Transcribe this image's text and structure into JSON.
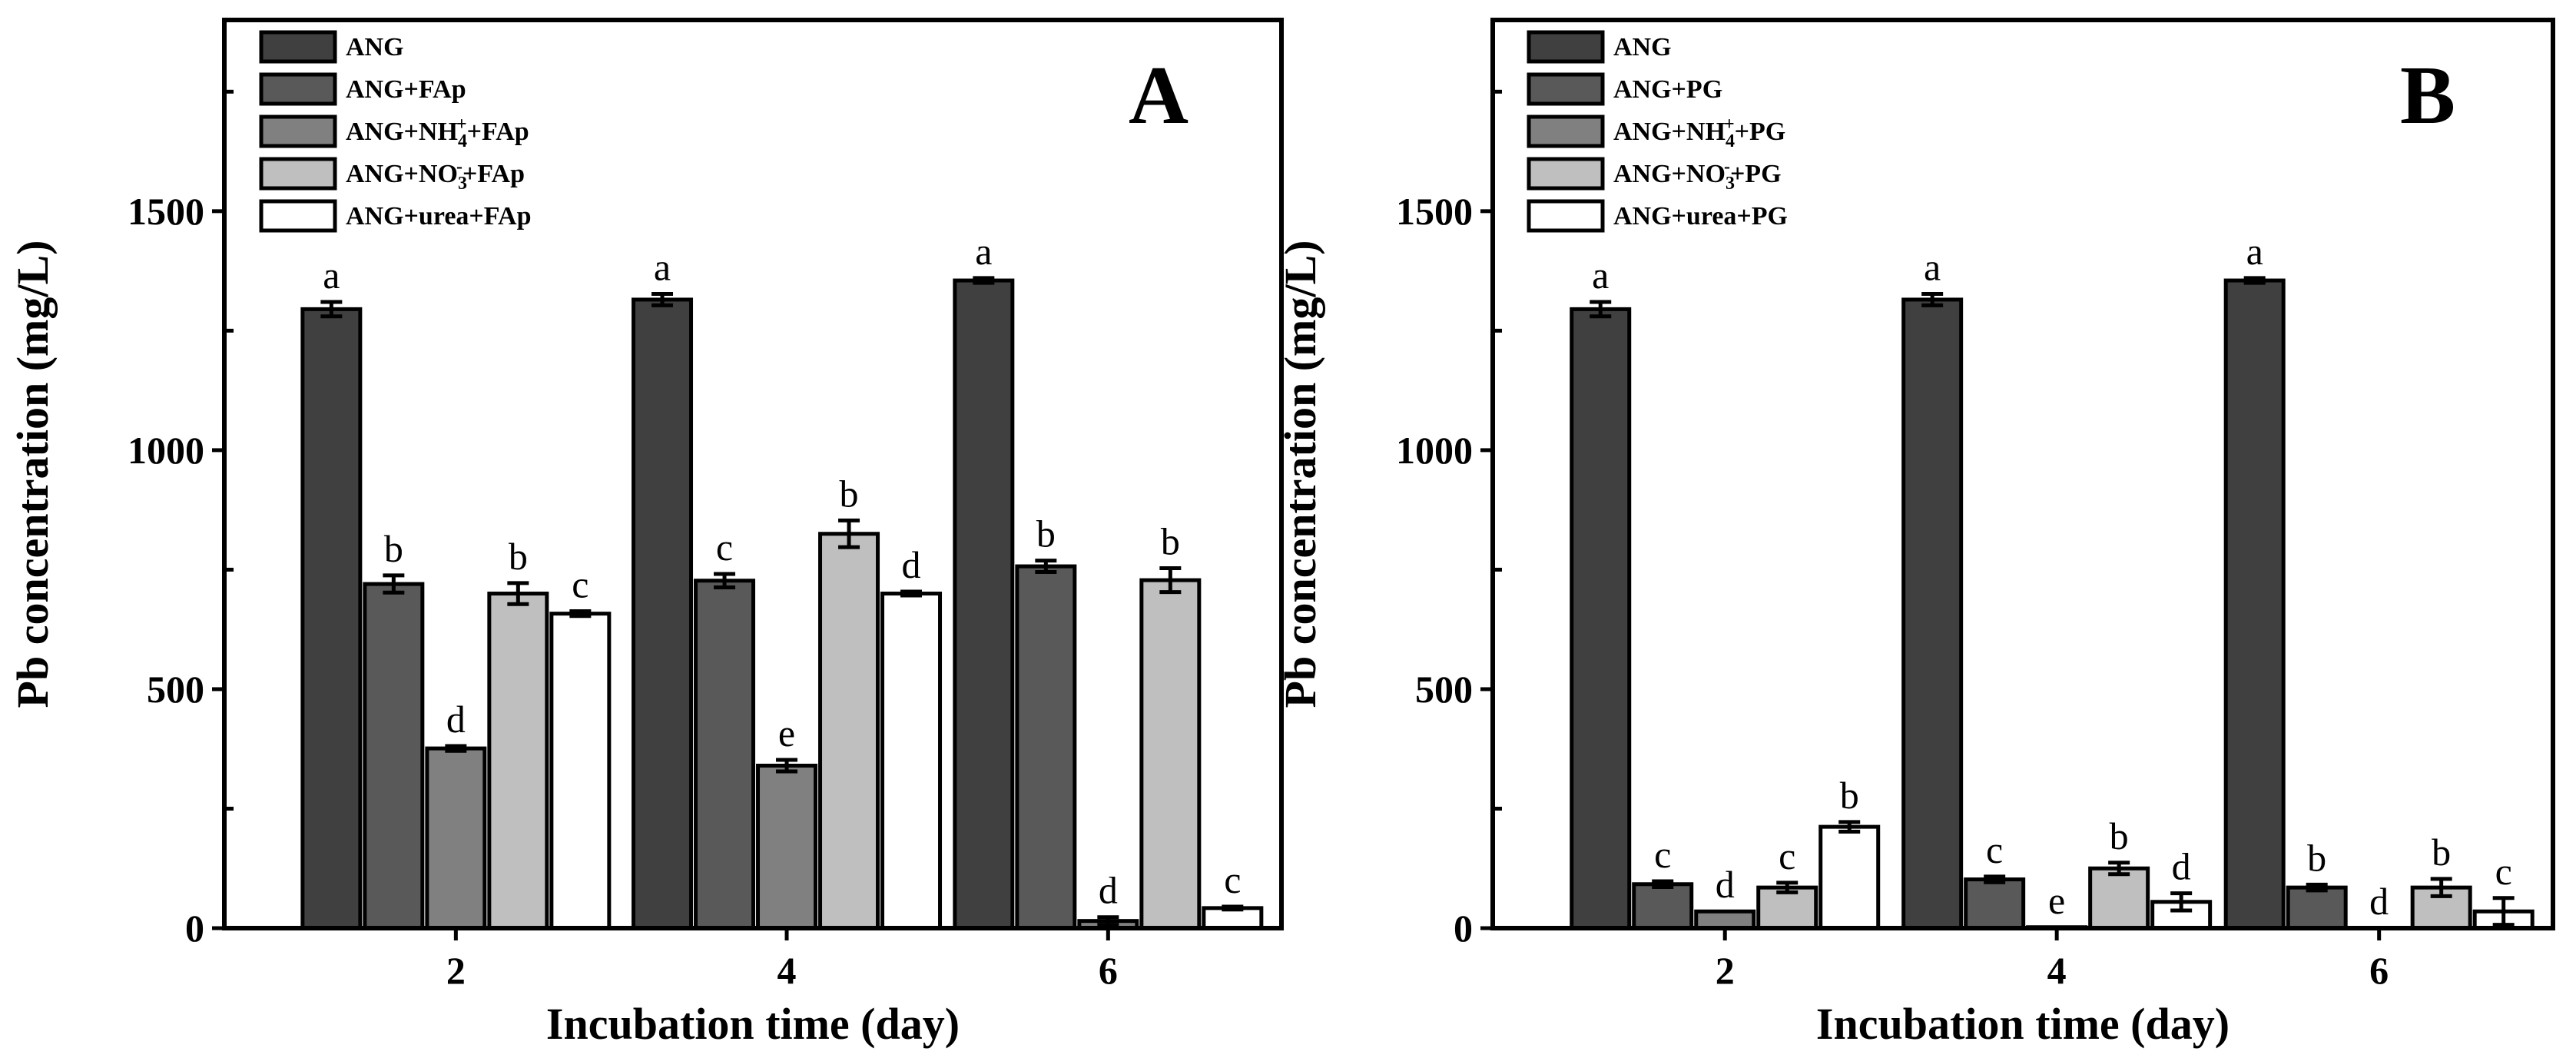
{
  "chart_data": [
    {
      "type": "bar",
      "panel_label": "A",
      "xlabel": "Incubation time (day)",
      "ylabel": "Pb concentration (mg/L)",
      "categories": [
        "2",
        "4",
        "6"
      ],
      "yticks": [
        "0",
        "500",
        "1000",
        "1500"
      ],
      "ylim": [
        0,
        1900
      ],
      "legend_position": "top-left",
      "series": [
        {
          "name": "ANG",
          "name_parts": {
            "base": "ANG",
            "sup": "",
            "sub": "",
            "tail": ""
          },
          "color": "#404040",
          "values": [
            1295,
            1315,
            1355
          ],
          "errors": [
            15,
            12,
            5
          ],
          "letters": [
            "a",
            "a",
            "a"
          ]
        },
        {
          "name": "ANG+FAp",
          "name_parts": {
            "base": "ANG+FAp",
            "sup": "",
            "sub": "",
            "tail": ""
          },
          "color": "#595959",
          "values": [
            720,
            727,
            757
          ],
          "errors": [
            18,
            14,
            12
          ],
          "letters": [
            "b",
            "c",
            "b"
          ]
        },
        {
          "name": "ANG+NH4++FAp",
          "name_parts": {
            "base": "ANG+NH",
            "sub": "4",
            "sup": "+",
            "tail": "+FAp"
          },
          "color": "#808080",
          "values": [
            376,
            340,
            15
          ],
          "errors": [
            5,
            12,
            8
          ],
          "letters": [
            "d",
            "e",
            "d"
          ]
        },
        {
          "name": "ANG+NO3-+FAp",
          "name_parts": {
            "base": "ANG+NO",
            "sub": "3",
            "sup": "-",
            "tail": "+FAp"
          },
          "color": "#bfbfbf",
          "values": [
            700,
            825,
            728
          ],
          "errors": [
            22,
            28,
            25
          ],
          "letters": [
            "b",
            "b",
            "b"
          ]
        },
        {
          "name": "ANG+urea+FAp",
          "name_parts": {
            "base": "ANG+urea+FAp",
            "sup": "",
            "sub": "",
            "tail": ""
          },
          "color": "#ffffff",
          "values": [
            658,
            700,
            42
          ],
          "errors": [
            5,
            4,
            3
          ],
          "letters": [
            "c",
            "d",
            "c"
          ]
        }
      ]
    },
    {
      "type": "bar",
      "panel_label": "B",
      "xlabel": "Incubation time (day)",
      "ylabel": "Pb concentration (mg/L)",
      "categories": [
        "2",
        "4",
        "6"
      ],
      "yticks": [
        "0",
        "500",
        "1000",
        "1500"
      ],
      "ylim": [
        0,
        1900
      ],
      "legend_position": "top-left",
      "series": [
        {
          "name": "ANG",
          "name_parts": {
            "base": "ANG",
            "sup": "",
            "sub": "",
            "tail": ""
          },
          "color": "#404040",
          "values": [
            1295,
            1315,
            1355
          ],
          "errors": [
            15,
            12,
            5
          ],
          "letters": [
            "a",
            "a",
            "a"
          ]
        },
        {
          "name": "ANG+PG",
          "name_parts": {
            "base": "ANG+PG",
            "sup": "",
            "sub": "",
            "tail": ""
          },
          "color": "#595959",
          "values": [
            92,
            102,
            85
          ],
          "errors": [
            6,
            6,
            6
          ],
          "letters": [
            "c",
            "c",
            "b"
          ]
        },
        {
          "name": "ANG+NH4++PG",
          "name_parts": {
            "base": "ANG+NH",
            "sub": "4",
            "sup": "+",
            "tail": "+PG"
          },
          "color": "#808080",
          "values": [
            35,
            2,
            0
          ],
          "errors": [
            0,
            0,
            0
          ],
          "letters": [
            "d",
            "e",
            "d"
          ]
        },
        {
          "name": "ANG+NO3-+PG",
          "name_parts": {
            "base": "ANG+NO",
            "sub": "3",
            "sup": "-",
            "tail": "+PG"
          },
          "color": "#bfbfbf",
          "values": [
            85,
            125,
            85
          ],
          "errors": [
            10,
            12,
            18
          ],
          "letters": [
            "c",
            "b",
            "b"
          ]
        },
        {
          "name": "ANG+urea+PG",
          "name_parts": {
            "base": "ANG+urea+PG",
            "sup": "",
            "sub": "",
            "tail": ""
          },
          "color": "#ffffff",
          "values": [
            212,
            55,
            35
          ],
          "errors": [
            10,
            18,
            28
          ],
          "letters": [
            "b",
            "d",
            "c"
          ]
        }
      ]
    }
  ]
}
